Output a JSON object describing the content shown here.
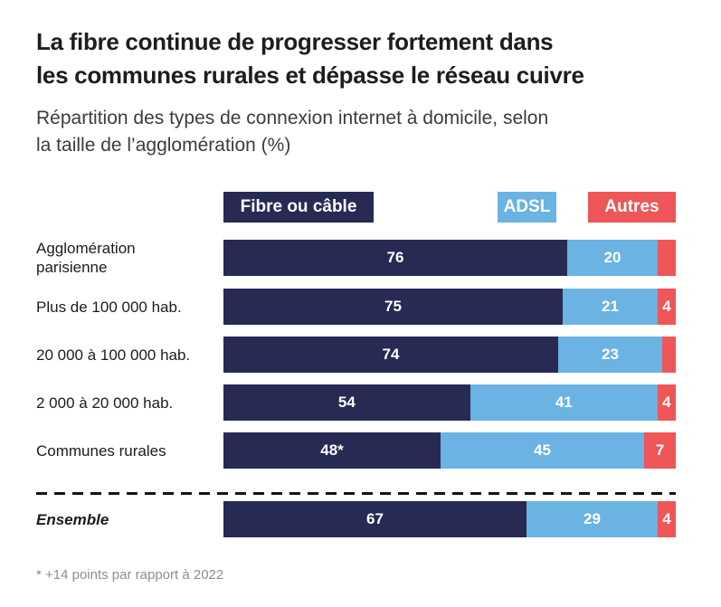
{
  "header": {
    "title_line1": "La fibre continue de progresser fortement dans",
    "title_line2": "les communes rurales et dépasse le réseau cuivre",
    "subtitle_line1": "Répartition des types de connexion internet à domicile, selon",
    "subtitle_line2": "la taille de l’agglomération (%)"
  },
  "legend": [
    {
      "label": "Fibre ou câble",
      "color": "#272a52"
    },
    {
      "label": "ADSL",
      "color": "#6ab3e2"
    },
    {
      "label": "Autres",
      "color": "#ee5657"
    }
  ],
  "footnote": "* +14 points par rapport à 2022",
  "chart_data": {
    "type": "bar",
    "orientation": "horizontal",
    "stacked": true,
    "value_unit": "%",
    "xlim": [
      0,
      100
    ],
    "grid": false,
    "legend_position": "top",
    "title": "La fibre continue de progresser fortement dans les communes rurales et dépasse le réseau cuivre",
    "subtitle": "Répartition des types de connexion internet à domicile, selon la taille de l’agglomération (%)",
    "categories": [
      "Agglomération parisienne",
      "Plus de 100 000 hab.",
      "20 000 à 100 000 hab.",
      "2 000 à 20 000 hab.",
      "Communes rurales",
      "Ensemble"
    ],
    "series": [
      {
        "name": "Fibre ou câble",
        "values": [
          76,
          75,
          74,
          54,
          48,
          67
        ]
      },
      {
        "name": "ADSL",
        "values": [
          20,
          21,
          23,
          41,
          45,
          29
        ]
      },
      {
        "name": "Autres",
        "values": [
          4,
          4,
          3,
          4,
          7,
          4
        ]
      }
    ],
    "colors": {
      "fibre": "#272a52",
      "adsl": "#6ab3e2",
      "autres": "#ee5657"
    },
    "rows": [
      {
        "display": "Agglomération\nparisienne",
        "values": {
          "fibre": 76,
          "adsl": 20,
          "autres": 4
        },
        "labels": {
          "fibre": "76",
          "adsl": "20",
          "autres": ""
        }
      },
      {
        "display": "Plus de 100 000 hab.",
        "values": {
          "fibre": 75,
          "adsl": 21,
          "autres": 4
        },
        "labels": {
          "fibre": "75",
          "adsl": "21",
          "autres": "4"
        }
      },
      {
        "display": "20 000 à 100 000 hab.",
        "values": {
          "fibre": 74,
          "adsl": 23,
          "autres": 3
        },
        "labels": {
          "fibre": "74",
          "adsl": "23",
          "autres": ""
        }
      },
      {
        "display": "2 000 à 20 000 hab.",
        "values": {
          "fibre": 54,
          "adsl": 41,
          "autres": 4
        },
        "labels": {
          "fibre": "54",
          "adsl": "41",
          "autres": "4"
        }
      },
      {
        "display": "Communes rurales",
        "values": {
          "fibre": 48,
          "adsl": 45,
          "autres": 7
        },
        "labels": {
          "fibre": "48*",
          "adsl": "45",
          "autres": "7"
        }
      },
      {
        "display": "Ensemble",
        "values": {
          "fibre": 67,
          "adsl": 29,
          "autres": 4
        },
        "labels": {
          "fibre": "67",
          "adsl": "29",
          "autres": "4"
        }
      }
    ],
    "annotations": {
      "asterisk_note": "* +14 points par rapport à 2022",
      "asterisk_applies_to": "Communes rurales"
    }
  }
}
